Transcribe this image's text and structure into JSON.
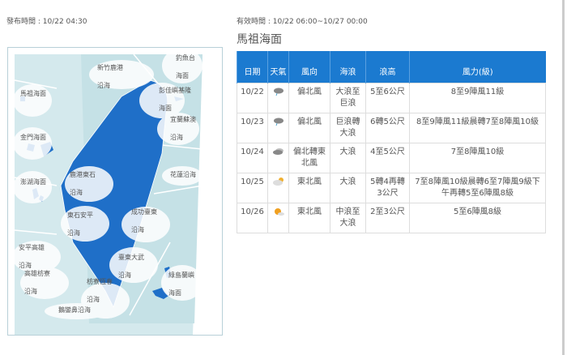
{
  "issue_time": "發布時間 : 10/22 04:30",
  "valid_time": "有效時間 : 10/22 06:00~10/27 00:00",
  "area_title": "馬祖海面",
  "map_labels": [
    {
      "l1": "新竹鹿港",
      "l2": "沿海"
    },
    {
      "l1": "釣魚台",
      "l2": "海面"
    },
    {
      "l1": "彭佳嶼基隆",
      "l2": "海面"
    },
    {
      "l1": "宜蘭蘇澳",
      "l2": "沿海"
    },
    {
      "l1": "花蓮沿海",
      "l2": ""
    },
    {
      "l1": "馬祖海面",
      "l2": ""
    },
    {
      "l1": "金門海面",
      "l2": ""
    },
    {
      "l1": "澎湖海面",
      "l2": ""
    },
    {
      "l1": "鹿港東石",
      "l2": "沿海"
    },
    {
      "l1": "東石安平",
      "l2": "沿海"
    },
    {
      "l1": "成功臺東",
      "l2": "沿海"
    },
    {
      "l1": "安平高雄",
      "l2": "沿海"
    },
    {
      "l1": "高雄枋寮",
      "l2": "沿海"
    },
    {
      "l1": "枋寮恆春",
      "l2": "沿海"
    },
    {
      "l1": "臺東大武",
      "l2": "沿海"
    },
    {
      "l1": "綠島蘭嶼",
      "l2": "海面"
    },
    {
      "l1": "鵝鑾鼻沿海",
      "l2": ""
    }
  ],
  "table": {
    "headers": [
      "日期",
      "天氣",
      "風向",
      "海浪",
      "浪高",
      "風力(級)"
    ],
    "rows": [
      {
        "date": "10/22",
        "weather": "cloudy-rain-icon",
        "wind_dir": "偏北風",
        "wave": "大浪至巨浪",
        "height": "5至6公尺",
        "force": "8至9陣風11級"
      },
      {
        "date": "10/23",
        "weather": "cloudy-rain-icon",
        "wind_dir": "偏北風",
        "wave": "巨浪轉大浪",
        "height": "6轉5公尺",
        "force": "8至9陣風11級晨轉7至8陣風10級"
      },
      {
        "date": "10/24",
        "weather": "cloudy-icon",
        "wind_dir": "偏北轉東北風",
        "wave": "大浪",
        "height": "4至5公尺",
        "force": "7至8陣風10級"
      },
      {
        "date": "10/25",
        "weather": "cloudy-sun-icon",
        "wind_dir": "東北風",
        "wave": "大浪",
        "height": "5轉4再轉3公尺",
        "force": "7至8陣風10級晨轉6至7陣風9級下午再轉5至6陣風8級"
      },
      {
        "date": "10/26",
        "weather": "sunny-cloud-icon",
        "wind_dir": "東北風",
        "wave": "中浪至大浪",
        "height": "2至3公尺",
        "force": "5至6陣風8級"
      }
    ]
  },
  "colors": {
    "header": "#1b7ad0",
    "land": "#1f6fc8",
    "sea": "#cfe6ea"
  }
}
